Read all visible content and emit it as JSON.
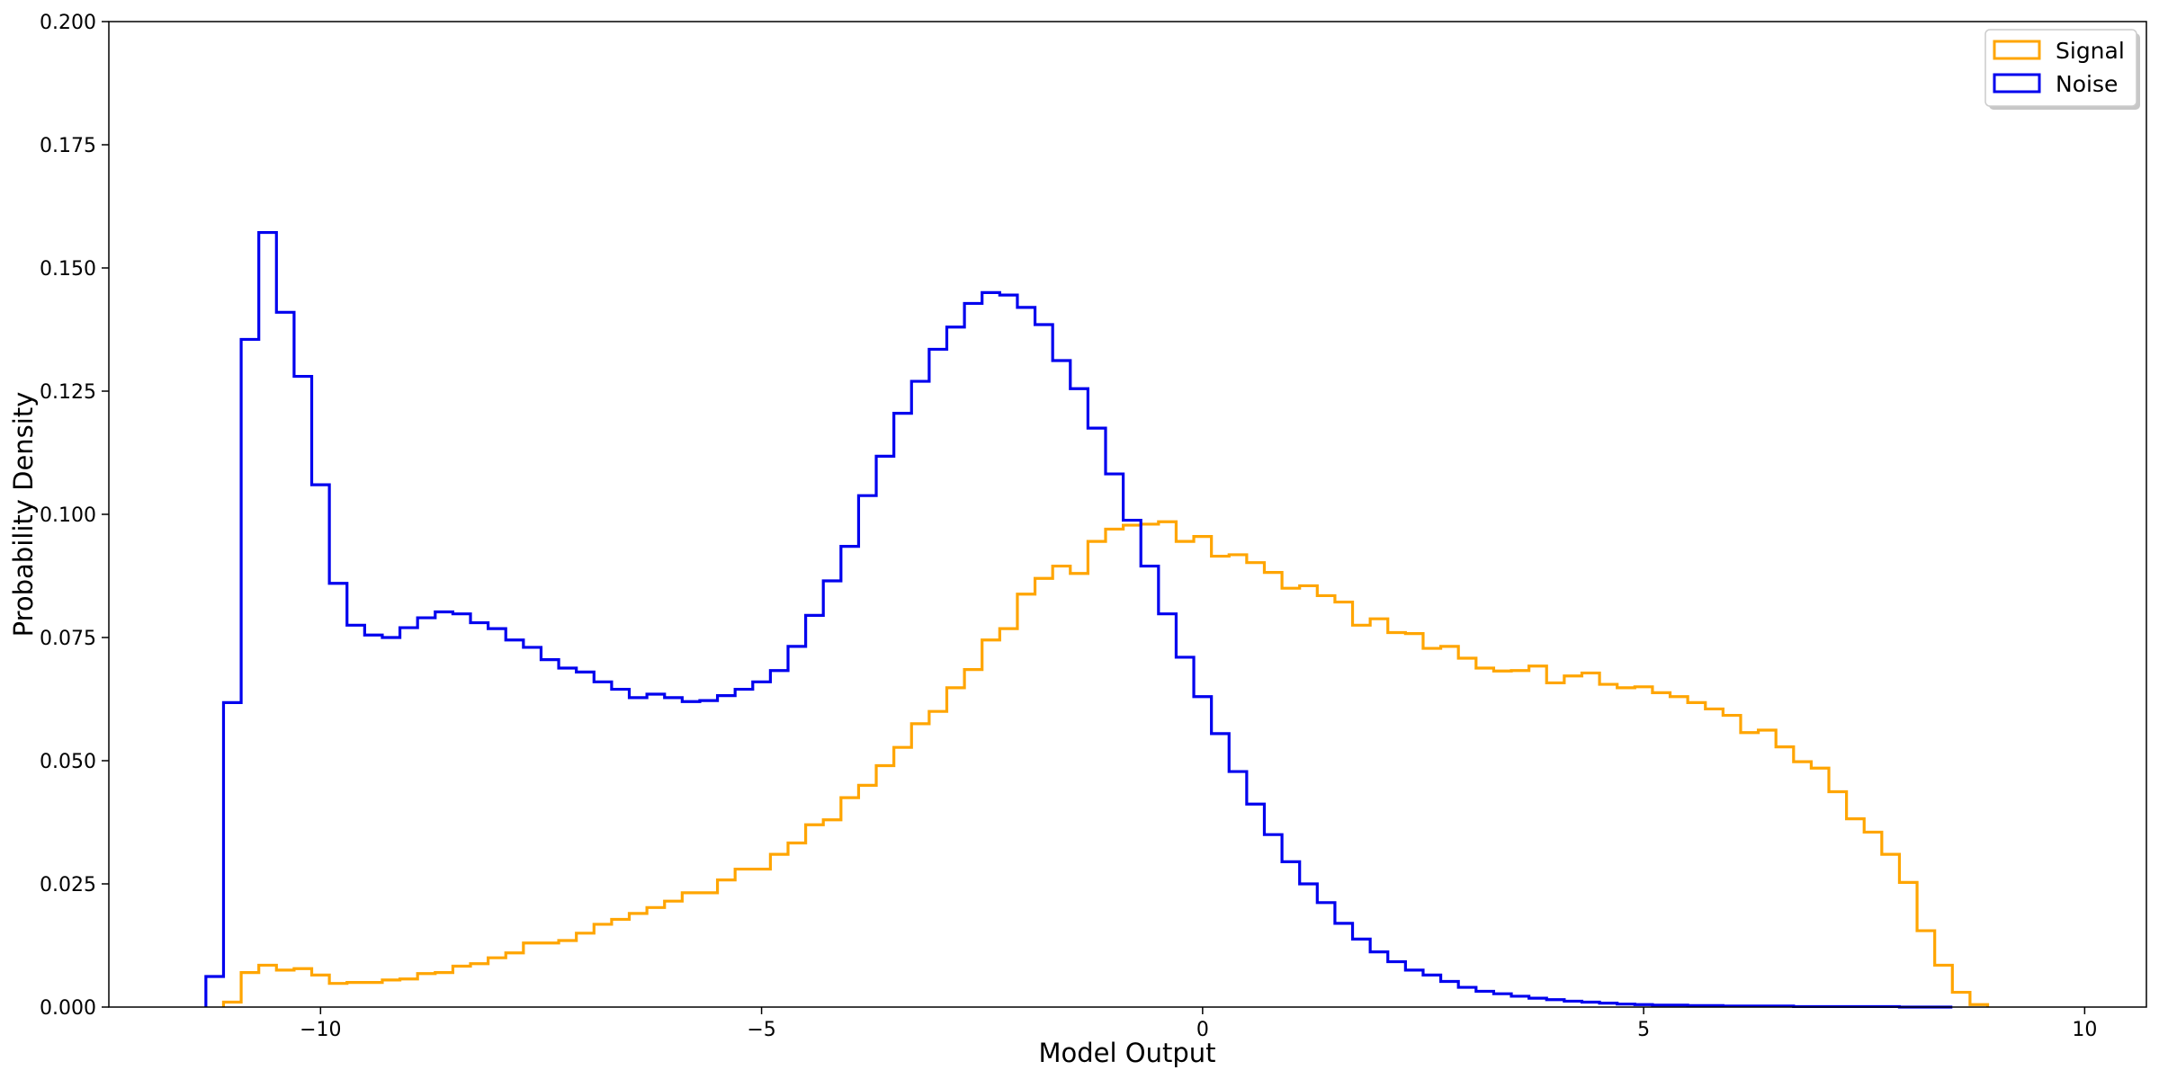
{
  "chart_data": {
    "type": "histogram-step",
    "title": "",
    "xlabel": "Model Output",
    "ylabel": "Probability Density",
    "xlim": [
      -12.4,
      10.7
    ],
    "ylim": [
      0,
      0.2
    ],
    "x_ticks": [
      -10,
      -5,
      0,
      5,
      10
    ],
    "x_tick_labels": [
      "−10",
      "−5",
      "0",
      "5",
      "10"
    ],
    "y_ticks": [
      0,
      0.025,
      0.05,
      0.075,
      0.1,
      0.125,
      0.15,
      0.175,
      0.2
    ],
    "y_tick_labels": [
      "0.000",
      "0.025",
      "0.050",
      "0.075",
      "0.100",
      "0.125",
      "0.150",
      "0.175",
      "0.200"
    ],
    "grid": false,
    "legend_position": "top-right",
    "series": [
      {
        "name": "Signal",
        "color": "#FFA500",
        "bin_width": 0.2,
        "bin_start": -11.1,
        "values": [
          0.001,
          0.007,
          0.0085,
          0.0075,
          0.0078,
          0.0065,
          0.0048,
          0.005,
          0.005,
          0.0055,
          0.0057,
          0.0068,
          0.007,
          0.0083,
          0.0088,
          0.01,
          0.011,
          0.013,
          0.013,
          0.0135,
          0.015,
          0.0168,
          0.0178,
          0.019,
          0.0202,
          0.0215,
          0.0232,
          0.0232,
          0.0258,
          0.028,
          0.028,
          0.031,
          0.0333,
          0.037,
          0.038,
          0.0425,
          0.045,
          0.049,
          0.0527,
          0.0575,
          0.06,
          0.0648,
          0.0685,
          0.0745,
          0.0768,
          0.0838,
          0.087,
          0.0895,
          0.088,
          0.0945,
          0.097,
          0.0978,
          0.098,
          0.0985,
          0.0945,
          0.0955,
          0.0915,
          0.0918,
          0.0902,
          0.0882,
          0.085,
          0.0855,
          0.0835,
          0.0822,
          0.0775,
          0.0788,
          0.076,
          0.0758,
          0.0728,
          0.0732,
          0.0708,
          0.0688,
          0.0682,
          0.0683,
          0.0692,
          0.0658,
          0.0672,
          0.0678,
          0.0655,
          0.0648,
          0.065,
          0.0638,
          0.063,
          0.0618,
          0.0605,
          0.0592,
          0.0557,
          0.0562,
          0.0528,
          0.0498,
          0.0485,
          0.0437,
          0.0382,
          0.0355,
          0.031,
          0.0253,
          0.0155,
          0.0085,
          0.003,
          0.0005
        ]
      },
      {
        "name": "Noise",
        "color": "#0000EE",
        "bin_width": 0.2,
        "bin_start": -11.3,
        "values": [
          0.0062,
          0.0618,
          0.1355,
          0.1572,
          0.141,
          0.128,
          0.106,
          0.086,
          0.0775,
          0.0755,
          0.075,
          0.077,
          0.079,
          0.0802,
          0.0798,
          0.078,
          0.0768,
          0.0745,
          0.073,
          0.0705,
          0.0688,
          0.068,
          0.066,
          0.0645,
          0.0628,
          0.0635,
          0.0628,
          0.062,
          0.0622,
          0.0632,
          0.0645,
          0.066,
          0.0683,
          0.0732,
          0.0795,
          0.0865,
          0.0935,
          0.1038,
          0.1118,
          0.1205,
          0.127,
          0.1335,
          0.138,
          0.1428,
          0.145,
          0.1445,
          0.142,
          0.1385,
          0.1312,
          0.1255,
          0.1175,
          0.1082,
          0.0988,
          0.0895,
          0.0798,
          0.071,
          0.063,
          0.0555,
          0.0478,
          0.0412,
          0.035,
          0.0295,
          0.025,
          0.0212,
          0.017,
          0.0138,
          0.0112,
          0.0092,
          0.0075,
          0.0065,
          0.0052,
          0.004,
          0.0032,
          0.0027,
          0.0022,
          0.0018,
          0.0015,
          0.0012,
          0.001,
          0.0008,
          0.0006,
          0.0005,
          0.0004,
          0.0004,
          0.0003,
          0.0003,
          0.0002,
          0.0002,
          0.0002,
          0.0002,
          0.0001,
          0.0001,
          0.0001,
          0.0001,
          0.0001,
          0.0001,
          0.0,
          0.0,
          0.0
        ]
      }
    ]
  }
}
